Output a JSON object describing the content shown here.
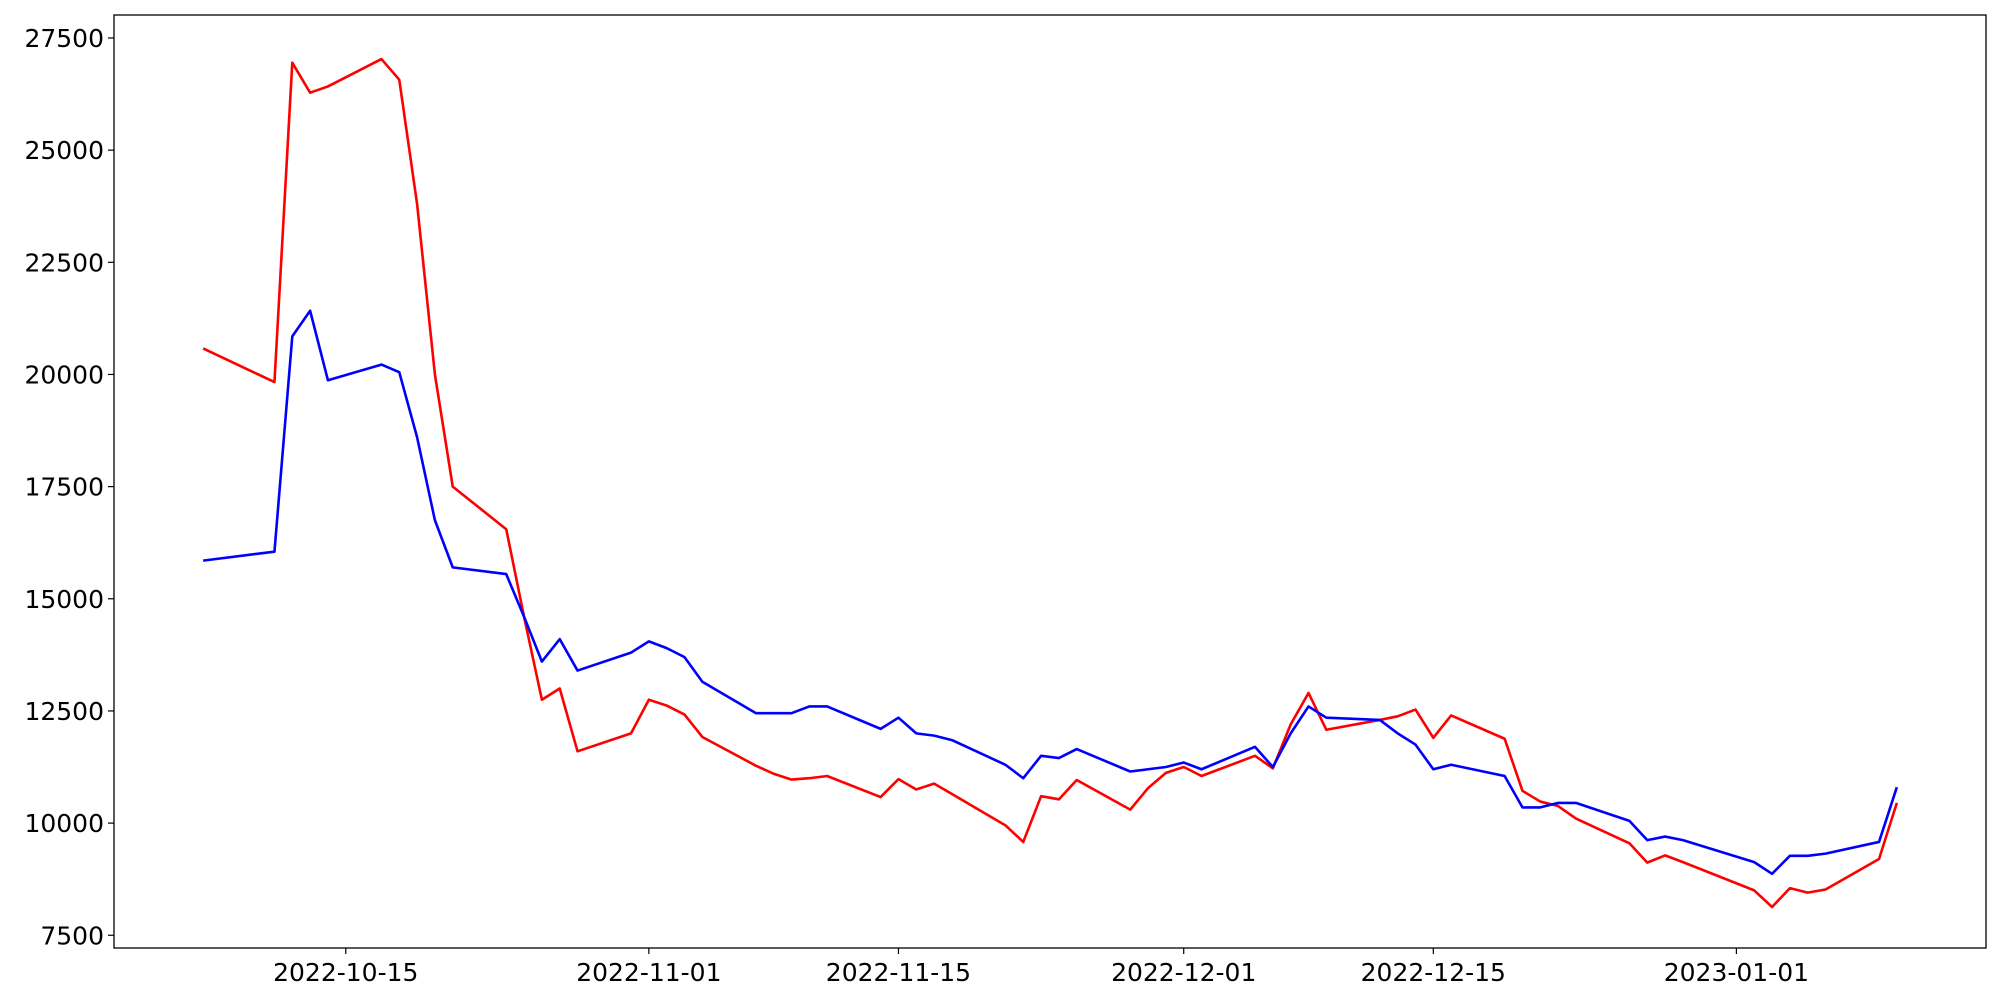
{
  "chart_data": {
    "type": "line",
    "x": [
      "2022-10-07",
      "2022-10-11",
      "2022-10-12",
      "2022-10-13",
      "2022-10-14",
      "2022-10-17",
      "2022-10-18",
      "2022-10-19",
      "2022-10-20",
      "2022-10-21",
      "2022-10-24",
      "2022-10-25",
      "2022-10-26",
      "2022-10-27",
      "2022-10-28",
      "2022-10-31",
      "2022-11-01",
      "2022-11-02",
      "2022-11-03",
      "2022-11-04",
      "2022-11-07",
      "2022-11-08",
      "2022-11-09",
      "2022-11-10",
      "2022-11-11",
      "2022-11-14",
      "2022-11-15",
      "2022-11-16",
      "2022-11-17",
      "2022-11-18",
      "2022-11-21",
      "2022-11-22",
      "2022-11-23",
      "2022-11-24",
      "2022-11-25",
      "2022-11-28",
      "2022-11-29",
      "2022-11-30",
      "2022-12-01",
      "2022-12-02",
      "2022-12-05",
      "2022-12-06",
      "2022-12-07",
      "2022-12-08",
      "2022-12-09",
      "2022-12-12",
      "2022-12-13",
      "2022-12-14",
      "2022-12-15",
      "2022-12-16",
      "2022-12-19",
      "2022-12-20",
      "2022-12-21",
      "2022-12-22",
      "2022-12-23",
      "2022-12-26",
      "2022-12-27",
      "2022-12-28",
      "2022-12-29",
      "2023-01-02",
      "2023-01-03",
      "2023-01-04",
      "2023-01-05",
      "2023-01-06",
      "2023-01-09",
      "2023-01-10"
    ],
    "series": [
      {
        "color": "#ff0000",
        "values": [
          20580,
          19830,
          26950,
          26280,
          26420,
          27030,
          26570,
          23800,
          20000,
          17500,
          16550,
          14600,
          12750,
          13000,
          11600,
          12000,
          12750,
          12620,
          12420,
          11920,
          11280,
          11100,
          10970,
          11000,
          11050,
          10580,
          10980,
          10750,
          10880,
          10650,
          9950,
          9580,
          10600,
          10530,
          10960,
          10300,
          10780,
          11120,
          11250,
          11050,
          11500,
          11220,
          12200,
          12900,
          12080,
          12300,
          12380,
          12530,
          11900,
          12400,
          11880,
          10720,
          10480,
          10380,
          10100,
          9550,
          9120,
          9280,
          9130,
          8500,
          8130,
          8550,
          8450,
          8520,
          9200,
          10450
        ]
      },
      {
        "color": "#0000ff",
        "values": [
          15850,
          16050,
          20850,
          21420,
          19870,
          20220,
          20050,
          18600,
          16750,
          15700,
          15550,
          14600,
          13600,
          14100,
          13400,
          13800,
          14050,
          13900,
          13700,
          13150,
          12450,
          12450,
          12450,
          12600,
          12600,
          12100,
          12350,
          12000,
          11950,
          11850,
          11300,
          11000,
          11500,
          11450,
          11650,
          11150,
          11200,
          11250,
          11350,
          11200,
          11700,
          11250,
          12000,
          12600,
          12350,
          12300,
          12000,
          11750,
          11200,
          11300,
          11050,
          10350,
          10350,
          10450,
          10450,
          10050,
          9620,
          9700,
          9620,
          9130,
          8870,
          9270,
          9270,
          9320,
          9580,
          10800
        ]
      }
    ],
    "xlim": [
      "2022-10-02",
      "2023-01-15"
    ],
    "xticks": [
      "2022-10-15",
      "2022-11-01",
      "2022-11-15",
      "2022-12-01",
      "2022-12-15",
      "2023-01-01"
    ],
    "ylim": [
      7216,
      28012
    ],
    "yticks": [
      7500,
      10000,
      12500,
      15000,
      17500,
      20000,
      22500,
      25000,
      27500
    ]
  }
}
